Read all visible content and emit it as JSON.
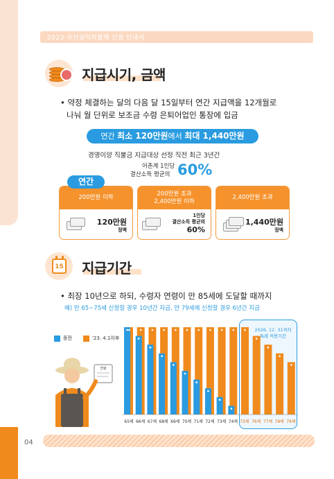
{
  "header": {
    "title": "2023 수산공익직불제 신청 안내서"
  },
  "section1": {
    "title": "지급시기, 금액",
    "bullet_line1": "• 약정 체결하는 달의 다음 달 15일부터 연간 지급액을 12개월로",
    "bullet_line2": "나눠 월 단위로 보조금 수령 은퇴어업인 통장에 입금",
    "range": {
      "prefix": "연간 ",
      "min": "최소 120만원",
      "mid": "에서 ",
      "max": "최대 1,440만원"
    },
    "note1": "경영이양 직불금 지급대상 선정 직전 최근 3년간",
    "note2a": "어촌계 1인당",
    "note2b": "결산소득 평균의",
    "percent": "60%",
    "yeongan": "연간",
    "cards": [
      {
        "head": "200만원 이하",
        "value_line1": "120만원",
        "value_line2": "정액"
      },
      {
        "head_line1": "200만원 초과",
        "head_line2": "2,400만원 이하",
        "value_line1": "1인당",
        "value_line2": "결산소득 평균의",
        "value_line3": "60%"
      },
      {
        "head": "2,400만원 초과",
        "value_line1": "1,440만원",
        "value_line2": "정액"
      }
    ]
  },
  "section2": {
    "title": "지급기간",
    "calendar_day": "15",
    "bullet": "• 최장 10년으로 하되, 수령자 연령이 만 85세에 도달할 때까지",
    "example": "예) 만 65~75세 신청할 경우 10년간 지급, 만 79세에 신청할 경우 6년간 지급",
    "sign_text": "연령",
    "callout_line1": "2026. 12. 31까지",
    "callout_line2": "특례 적용기간"
  },
  "colors": {
    "accent_orange": "#f5922c",
    "accent_blue": "#2a9be0",
    "pale_orange": "#fde0c8"
  },
  "chart_data": {
    "type": "bar",
    "categories": [
      "65세",
      "66세",
      "67세",
      "68세",
      "69세",
      "70세",
      "71세",
      "72세",
      "73세",
      "74세",
      "75세",
      "76세",
      "77세",
      "78세",
      "79세"
    ],
    "series": [
      {
        "name": "종전",
        "color": "#2a9be0",
        "values": [
          10,
          9,
          8,
          7,
          6,
          5,
          4,
          3,
          2,
          1,
          0,
          0,
          0,
          0,
          0
        ]
      },
      {
        "name": "'23. 4.1이후",
        "color": "#f08a1c",
        "values": [
          10,
          10,
          10,
          10,
          10,
          10,
          10,
          10,
          10,
          10,
          10,
          9,
          8,
          7,
          6
        ]
      }
    ],
    "ylim": [
      0,
      10
    ],
    "highlight_categories": [
      "75세",
      "76세",
      "77세",
      "78세",
      "79세"
    ]
  },
  "page_number": "04"
}
